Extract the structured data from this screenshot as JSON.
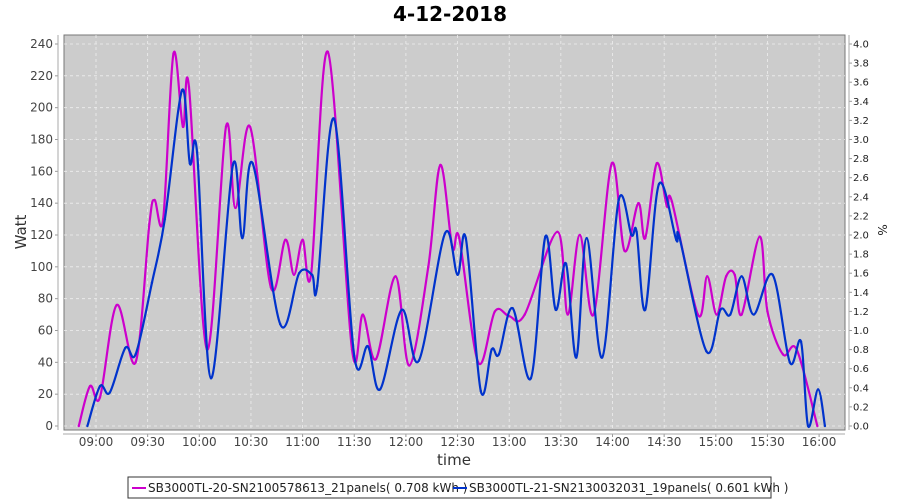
{
  "chart_data": {
    "type": "line",
    "title": "4-12-2018",
    "xlabel": "time",
    "ylabel": "Watt",
    "y2label": "%",
    "ylim": [
      0,
      240
    ],
    "y2lim": [
      0,
      4.0
    ],
    "yticks": [
      "0",
      "20",
      "40",
      "60",
      "80",
      "100",
      "120",
      "140",
      "160",
      "180",
      "200",
      "220",
      "240"
    ],
    "y2ticks": [
      "0.0",
      "0.2",
      "0.4",
      "0.6",
      "0.8",
      "1.0",
      "1.2",
      "1.4",
      "1.6",
      "1.8",
      "2.0",
      "2.2",
      "2.4",
      "2.6",
      "2.8",
      "3.0",
      "3.2",
      "3.4",
      "3.6",
      "3.8",
      "4.0"
    ],
    "xticks": [
      "09:00",
      "09:30",
      "10:00",
      "10:30",
      "11:00",
      "11:30",
      "12:00",
      "12:30",
      "13:00",
      "13:30",
      "14:00",
      "14:30",
      "15:00",
      "15:30",
      "16:00"
    ],
    "x_unit": "minutes after 09:00",
    "grid": true,
    "legend_position": "bottom",
    "series": [
      {
        "name": "SB3000TL-20-SN2100578613_21panels( 0.708 kWh )",
        "color": "#cc00cc",
        "points": [
          [
            -10,
            0
          ],
          [
            -3.5,
            25
          ],
          [
            2.3,
            18
          ],
          [
            12,
            76
          ],
          [
            23,
            40
          ],
          [
            31,
            127
          ],
          [
            34,
            142
          ],
          [
            39,
            130
          ],
          [
            45,
            234
          ],
          [
            50.5,
            188
          ],
          [
            54,
            213
          ],
          [
            64.5,
            48
          ],
          [
            75.5,
            188
          ],
          [
            81,
            137
          ],
          [
            89.5,
            188
          ],
          [
            101.6,
            87
          ],
          [
            110,
            117
          ],
          [
            115,
            95
          ],
          [
            120,
            117
          ],
          [
            125,
            96
          ],
          [
            134.7,
            235
          ],
          [
            148.7,
            48
          ],
          [
            155,
            70
          ],
          [
            162.6,
            42
          ],
          [
            174,
            94
          ],
          [
            182,
            38
          ],
          [
            193,
            100
          ],
          [
            200,
            164
          ],
          [
            207,
            112
          ],
          [
            211,
            118
          ],
          [
            222,
            40
          ],
          [
            231.7,
            72
          ],
          [
            240,
            69
          ],
          [
            249,
            70
          ],
          [
            268,
            122
          ],
          [
            274,
            70
          ],
          [
            281,
            120
          ],
          [
            289,
            70
          ],
          [
            299.6,
            165
          ],
          [
            307,
            110
          ],
          [
            315,
            140
          ],
          [
            319,
            118
          ],
          [
            325.7,
            165
          ],
          [
            331.6,
            138
          ],
          [
            334.5,
            141
          ],
          [
            349.6,
            70
          ],
          [
            355,
            94
          ],
          [
            360.5,
            70
          ],
          [
            366,
            94
          ],
          [
            371,
            95
          ],
          [
            375,
            70
          ],
          [
            385.5,
            119
          ],
          [
            390,
            72
          ],
          [
            399,
            45
          ],
          [
            407,
            48
          ],
          [
            419,
            0
          ]
        ]
      },
      {
        "name": "SB3000TL-21-SN2130032031_19panels( 0.601 kWh )",
        "color": "#0033cc",
        "points": [
          [
            -5,
            0
          ],
          [
            2.3,
            25
          ],
          [
            8,
            21
          ],
          [
            17,
            49
          ],
          [
            23,
            45
          ],
          [
            32.5,
            90
          ],
          [
            40,
            130
          ],
          [
            50,
            211
          ],
          [
            54.5,
            165
          ],
          [
            58.7,
            172
          ],
          [
            66.8,
            30
          ],
          [
            79.5,
            164
          ],
          [
            85,
            118
          ],
          [
            91,
            165
          ],
          [
            107,
            64
          ],
          [
            118,
            96
          ],
          [
            125.5,
            95
          ],
          [
            128.5,
            88
          ],
          [
            138.3,
            193
          ],
          [
            150,
            44
          ],
          [
            158,
            50
          ],
          [
            165,
            23
          ],
          [
            177.6,
            73
          ],
          [
            187.5,
            41
          ],
          [
            202.7,
            121
          ],
          [
            210,
            95
          ],
          [
            214.8,
            118
          ],
          [
            223.5,
            22
          ],
          [
            229.8,
            48
          ],
          [
            234,
            45
          ],
          [
            242,
            74
          ],
          [
            252.6,
            30
          ],
          [
            261,
            119
          ],
          [
            267,
            73
          ],
          [
            273,
            102
          ],
          [
            279,
            43
          ],
          [
            285,
            118
          ],
          [
            294,
            43
          ],
          [
            303.6,
            142
          ],
          [
            311,
            120
          ],
          [
            314,
            122
          ],
          [
            319,
            73
          ],
          [
            327,
            152
          ],
          [
            337,
            117
          ],
          [
            339,
            118
          ],
          [
            354.5,
            47
          ],
          [
            362.7,
            73
          ],
          [
            368.4,
            70
          ],
          [
            375,
            94
          ],
          [
            382,
            70
          ],
          [
            393,
            95
          ],
          [
            403,
            40
          ],
          [
            409.5,
            53
          ],
          [
            413.6,
            0
          ],
          [
            419.4,
            23
          ],
          [
            423.4,
            0
          ]
        ]
      }
    ]
  }
}
